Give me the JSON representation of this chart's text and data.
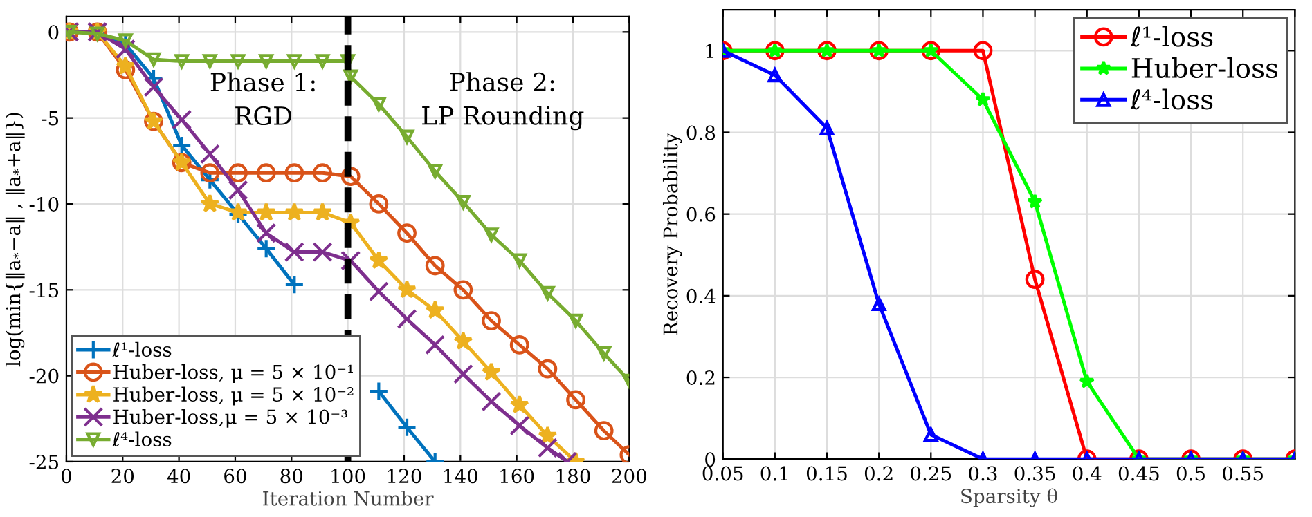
{
  "chart_data": [
    {
      "type": "line",
      "xlabel": "Iteration Number",
      "ylabel": "log(min{‖a$_{*}$−a‖ , ‖a$_{*}$+a‖})",
      "xlim": [
        0,
        200
      ],
      "ylim": [
        -25,
        0.9
      ],
      "xticks": [
        0,
        20,
        40,
        60,
        80,
        100,
        120,
        140,
        160,
        180,
        200
      ],
      "yticks": [
        -25,
        -20,
        -15,
        -10,
        -5,
        0
      ],
      "grid": true,
      "legend": "bottom left",
      "line_style": "solid",
      "annotations": [
        "Phase 1:\nRGD",
        "Phase 2:\nLP Rounding"
      ],
      "ref_lines": [
        {
          "axis": "x",
          "value": 100,
          "label": null,
          "color": "#000000",
          "line_style": "dashed"
        }
      ],
      "series": [
        {
          "name": "ℓ¹-loss",
          "color": "#0072bd",
          "marker": "plus",
          "x": [
            1,
            11,
            21,
            31,
            41,
            51,
            61,
            71,
            81,
            91,
            101,
            111,
            121,
            131
          ],
          "values": [
            0,
            0,
            -0.7,
            -2.7,
            -6.6,
            -8.6,
            -10.6,
            -12.6,
            -14.7,
            null,
            null,
            -20.9,
            -23,
            -25
          ]
        },
        {
          "name": "Huber-loss, μ = 5 × 10⁻¹",
          "color": "#d95319",
          "marker": "circle",
          "x": [
            1,
            11,
            21,
            31,
            41,
            51,
            61,
            71,
            81,
            91,
            101,
            111,
            121,
            131,
            141,
            151,
            161,
            171,
            181,
            191,
            200
          ],
          "values": [
            0,
            0,
            -2.2,
            -5.2,
            -7.6,
            -8.2,
            -8.2,
            -8.2,
            -8.2,
            -8.2,
            -8.4,
            -10,
            -11.7,
            -13.6,
            -15,
            -16.8,
            -18.2,
            -19.6,
            -21.4,
            -23.2,
            -24.6
          ]
        },
        {
          "name": "Huber-loss, μ = 5 × 10⁻²",
          "color": "#edb120",
          "marker": "star",
          "x": [
            1,
            11,
            21,
            31,
            41,
            51,
            61,
            71,
            81,
            91,
            101,
            111,
            121,
            131,
            141,
            151,
            161,
            171,
            181
          ],
          "values": [
            0,
            0,
            -2,
            -5.2,
            -7.6,
            -10,
            -10.5,
            -10.5,
            -10.5,
            -10.5,
            -11.1,
            -13.3,
            -15,
            -16.2,
            -18,
            -19.8,
            -21.7,
            -23.5,
            -25
          ]
        },
        {
          "name": "Huber-loss,μ = 5 × 10⁻³",
          "color": "#7e2f8e",
          "marker": "cross",
          "x": [
            1,
            11,
            21,
            31,
            41,
            51,
            61,
            71,
            81,
            91,
            101,
            111,
            121,
            131,
            141,
            151,
            161,
            171,
            178
          ],
          "values": [
            0,
            0,
            -1,
            -3.2,
            -5.1,
            -7.1,
            -9.2,
            -11.7,
            -12.8,
            -12.8,
            -13.3,
            -15.1,
            -16.7,
            -18.2,
            -19.9,
            -21.5,
            -22.9,
            -24.2,
            -25
          ]
        },
        {
          "name": "ℓ⁴-loss",
          "color": "#77ac30",
          "marker": "triangle_down",
          "x": [
            1,
            11,
            21,
            31,
            41,
            51,
            61,
            71,
            81,
            91,
            100,
            101,
            111,
            121,
            131,
            141,
            151,
            161,
            171,
            181,
            191,
            200
          ],
          "values": [
            0,
            -0.1,
            -0.5,
            -1.6,
            -1.7,
            -1.7,
            -1.7,
            -1.7,
            -1.7,
            -1.7,
            -1.7,
            -2.6,
            -4.2,
            -6.1,
            -8.1,
            -9.9,
            -11.8,
            -13.3,
            -15.2,
            -16.8,
            -18.7,
            -20.3
          ]
        }
      ]
    },
    {
      "type": "line",
      "xlabel": "Sparsity θ",
      "ylabel": "Recovery Probability",
      "xlim": [
        0.05,
        0.6
      ],
      "ylim": [
        0,
        1.1
      ],
      "xticks": [
        0.05,
        0.1,
        0.15,
        0.2,
        0.25,
        0.3,
        0.35,
        0.4,
        0.45,
        0.5,
        0.55,
        {
          "value": 0.6,
          "label": null
        }
      ],
      "yticks": [
        0,
        0.2,
        0.4,
        0.6,
        0.8,
        1
      ],
      "grid": true,
      "legend": "top right",
      "line_style": "solid",
      "x": [
        0.05,
        0.1,
        0.15,
        0.2,
        0.25,
        0.3,
        0.35,
        0.4,
        0.45,
        0.5,
        0.55,
        0.6
      ],
      "series": [
        {
          "name": "ℓ¹-loss",
          "color": "#ff0000",
          "marker": "circle",
          "values": [
            1,
            1,
            1,
            1,
            1,
            1,
            0.44,
            0,
            0,
            0,
            0,
            0
          ]
        },
        {
          "name": "Huber-loss",
          "color": "#00ff00",
          "marker": "star",
          "values": [
            1,
            1,
            1,
            1,
            1,
            0.88,
            0.63,
            0.19,
            0,
            0,
            0,
            0
          ]
        },
        {
          "name": "ℓ⁴-loss",
          "color": "#0000ff",
          "marker": "triangle",
          "values": [
            1,
            0.94,
            0.81,
            0.38,
            0.06,
            0,
            0,
            0,
            0,
            0,
            0,
            0
          ]
        }
      ]
    }
  ]
}
